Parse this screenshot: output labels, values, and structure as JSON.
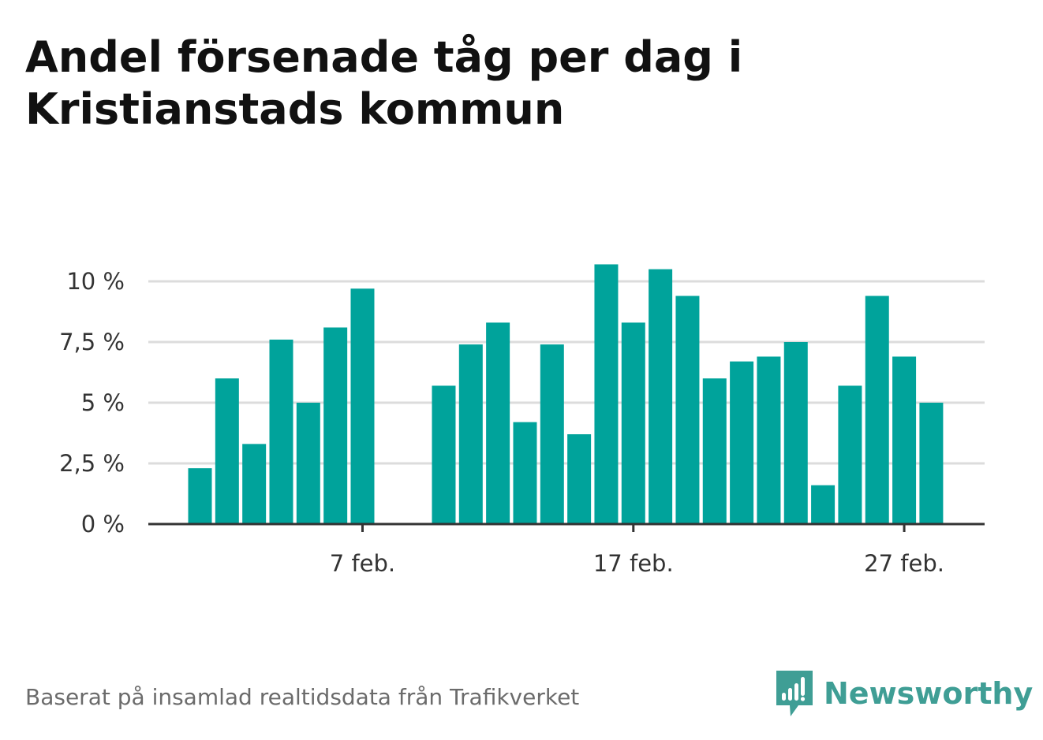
{
  "header": {
    "title_line1": "Andel försenade tåg per dag i",
    "title_line2": "Kristianstads kommun"
  },
  "footer": {
    "source": "Baserat på insamlad realtidsdata från Trafikverket",
    "brand": "Newsworthy",
    "brand_color": "#3f9e95"
  },
  "chart_data": {
    "type": "bar",
    "x_start_day": 1,
    "categories": [
      "1 feb.",
      "2 feb.",
      "3 feb.",
      "4 feb.",
      "5 feb.",
      "6 feb.",
      "7 feb.",
      "8 feb.",
      "9 feb.",
      "10 feb.",
      "11 feb.",
      "12 feb.",
      "13 feb.",
      "14 feb.",
      "15 feb.",
      "16 feb.",
      "17 feb.",
      "18 feb.",
      "19 feb.",
      "20 feb.",
      "21 feb.",
      "22 feb.",
      "23 feb.",
      "24 feb.",
      "25 feb.",
      "26 feb.",
      "27 feb.",
      "28 feb."
    ],
    "values": [
      2.3,
      6.0,
      3.3,
      7.6,
      5.0,
      8.1,
      9.7,
      null,
      null,
      5.7,
      7.4,
      8.3,
      4.2,
      7.4,
      3.7,
      10.7,
      8.3,
      10.5,
      9.4,
      6.0,
      6.7,
      6.9,
      7.5,
      1.6,
      5.7,
      9.4,
      6.9,
      5.0
    ],
    "ylim": [
      0,
      11
    ],
    "yticks": [
      0,
      2.5,
      5,
      7.5,
      10
    ],
    "ytick_labels": [
      "0 %",
      "2,5 %",
      "5 %",
      "7,5 %",
      "10 %"
    ],
    "xticks": [
      7,
      17,
      27
    ],
    "xtick_labels": [
      "7 feb.",
      "17 feb.",
      "27 feb."
    ],
    "bar_color": "#00a39b",
    "grid": true,
    "xlabel": "",
    "ylabel": ""
  }
}
